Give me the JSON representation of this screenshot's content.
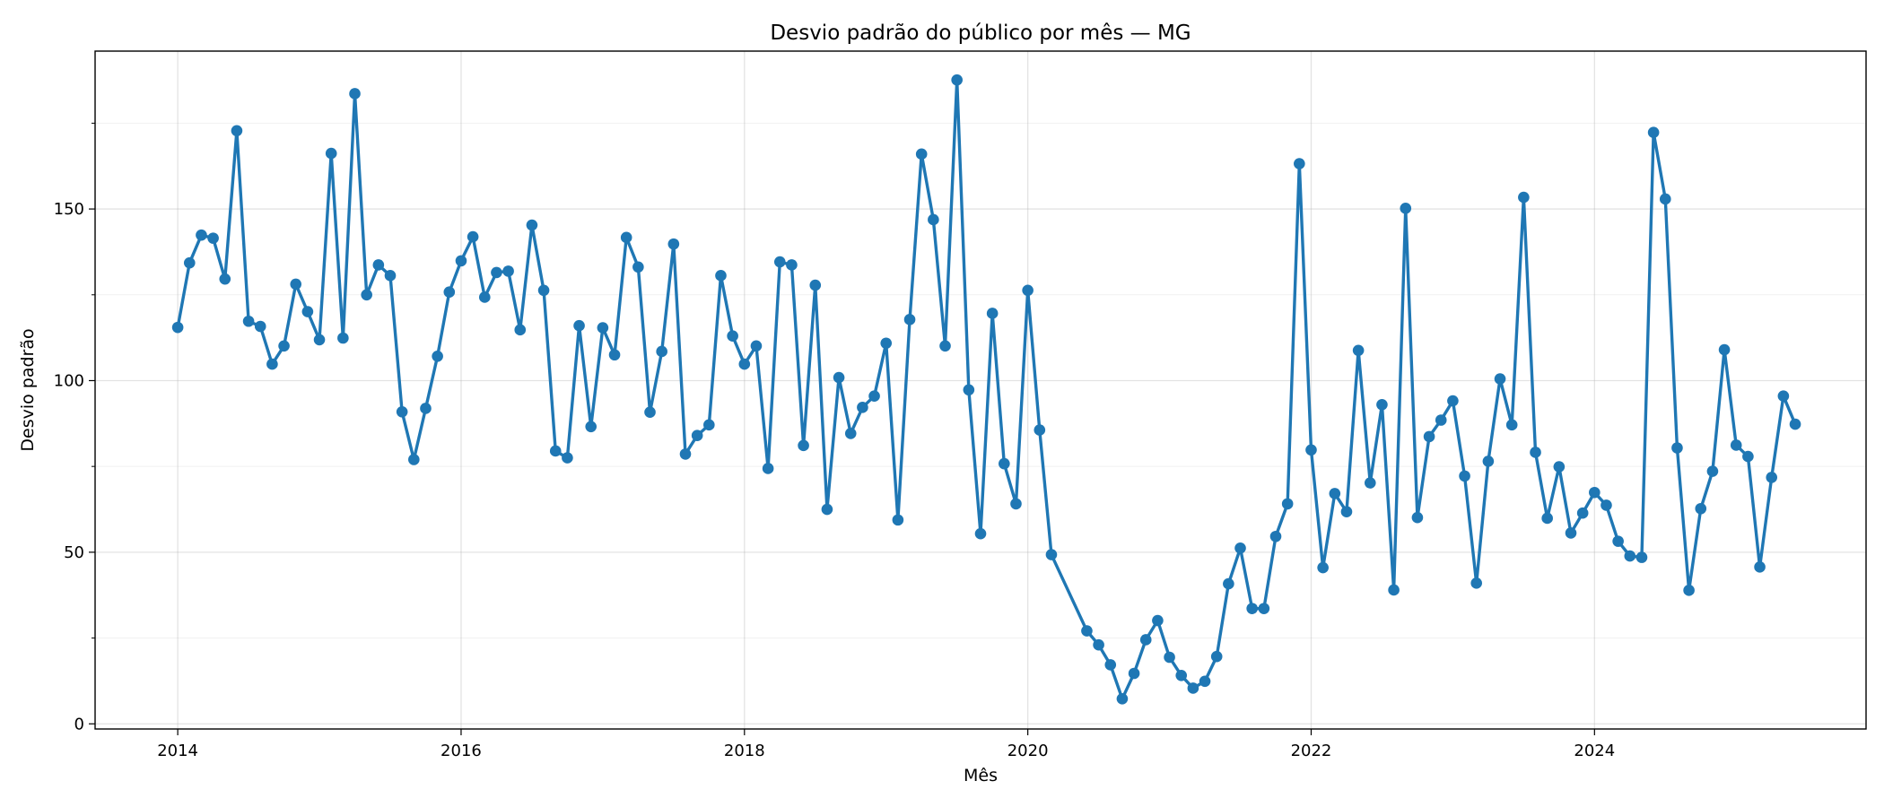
{
  "chart_data": {
    "type": "line",
    "title": "Desvio padrão do público por mês — MG",
    "xlabel": "Mês",
    "ylabel": "Desvio padrão",
    "x_ticks": [
      "2014",
      "2016",
      "2018",
      "2020",
      "2022",
      "2024"
    ],
    "y_ticks": [
      "0",
      "50",
      "100",
      "150"
    ],
    "xlim": [
      "2013-06",
      "2025-12"
    ],
    "ylim": [
      -1.5,
      196
    ],
    "grid": true,
    "color": "#1f77b4",
    "series": [
      {
        "x": [
          "2014-01",
          "2014-02",
          "2014-03",
          "2014-04",
          "2014-05",
          "2014-06",
          "2014-07",
          "2014-08",
          "2014-09",
          "2014-10",
          "2014-11",
          "2014-12",
          "2015-01",
          "2015-02",
          "2015-03",
          "2015-04",
          "2015-05",
          "2015-06",
          "2015-07",
          "2015-08",
          "2015-09",
          "2015-10",
          "2015-11",
          "2015-12",
          "2016-01",
          "2016-02",
          "2016-03",
          "2016-04",
          "2016-05",
          "2016-06",
          "2016-07",
          "2016-08",
          "2016-09",
          "2016-10",
          "2016-11",
          "2016-12",
          "2017-01",
          "2017-02",
          "2017-03",
          "2017-04",
          "2017-05",
          "2017-06",
          "2017-07",
          "2017-08",
          "2017-09",
          "2017-10",
          "2017-11",
          "2017-12",
          "2018-01",
          "2018-02",
          "2018-03",
          "2018-04",
          "2018-05",
          "2018-06",
          "2018-07",
          "2018-08",
          "2018-09",
          "2018-10",
          "2018-11",
          "2018-12",
          "2019-01",
          "2019-02",
          "2019-03",
          "2019-04",
          "2019-05",
          "2019-06",
          "2019-07",
          "2019-08",
          "2019-09",
          "2019-10",
          "2019-11",
          "2019-12",
          "2020-01",
          "2020-02",
          "2020-03",
          "2020-06",
          "2020-07",
          "2020-08",
          "2020-09",
          "2020-10",
          "2020-11",
          "2020-12",
          "2021-01",
          "2021-02",
          "2021-03",
          "2021-04",
          "2021-05",
          "2021-06",
          "2021-07",
          "2021-08",
          "2021-09",
          "2021-10",
          "2021-11",
          "2021-12",
          "2022-01",
          "2022-02",
          "2022-03",
          "2022-04",
          "2022-05",
          "2022-06",
          "2022-07",
          "2022-08",
          "2022-09",
          "2022-10",
          "2022-11",
          "2022-12",
          "2023-01",
          "2023-02",
          "2023-03",
          "2023-04",
          "2023-05",
          "2023-06",
          "2023-07",
          "2023-08",
          "2023-09",
          "2023-10",
          "2023-11",
          "2023-12",
          "2024-01",
          "2024-02",
          "2024-03",
          "2024-04",
          "2024-05",
          "2024-06",
          "2024-07",
          "2024-08",
          "2024-09",
          "2024-10",
          "2024-11",
          "2024-12",
          "2025-01",
          "2025-02",
          "2025-03",
          "2025-04",
          "2025-05",
          "2025-06"
        ],
        "y": [
          115.5,
          134.3,
          142.4,
          141.5,
          129.6,
          172.8,
          117.3,
          115.8,
          104.8,
          110.1,
          128.1,
          120.1,
          111.9,
          166.2,
          112.4,
          183.6,
          125.0,
          133.7,
          130.6,
          90.9,
          77.0,
          91.9,
          107.1,
          125.8,
          134.9,
          141.9,
          124.3,
          131.5,
          131.9,
          114.8,
          145.3,
          126.3,
          79.5,
          77.5,
          116.0,
          86.6,
          115.4,
          107.5,
          141.7,
          133.1,
          90.8,
          108.5,
          139.8,
          78.6,
          84.0,
          87.1,
          130.6,
          113.0,
          104.8,
          110.1,
          74.4,
          134.6,
          133.7,
          81.1,
          127.8,
          62.5,
          100.9,
          84.6,
          92.2,
          95.5,
          110.9,
          59.4,
          117.8,
          166.0,
          146.9,
          110.1,
          187.6,
          97.3,
          55.4,
          119.6,
          75.8,
          64.1,
          126.3,
          85.6,
          49.3,
          27.1,
          23.0,
          17.2,
          7.3,
          14.7,
          24.5,
          30.1,
          19.4,
          14.1,
          10.4,
          12.4,
          19.6,
          40.8,
          51.2,
          33.6,
          33.6,
          54.6,
          64.1,
          163.2,
          79.8,
          45.5,
          67.1,
          61.8,
          108.8,
          70.2,
          93.0,
          39.0,
          150.2,
          60.1,
          83.7,
          88.5,
          94.1,
          72.2,
          41.0,
          76.5,
          100.5,
          87.1,
          153.4,
          79.1,
          59.9,
          74.9,
          55.6,
          61.4,
          67.4,
          63.7,
          53.2,
          48.9,
          48.5,
          172.3,
          152.9,
          80.4,
          38.9,
          62.7,
          73.6,
          109.0,
          81.2,
          77.9,
          45.7,
          71.8,
          95.5,
          87.3
        ]
      }
    ]
  }
}
